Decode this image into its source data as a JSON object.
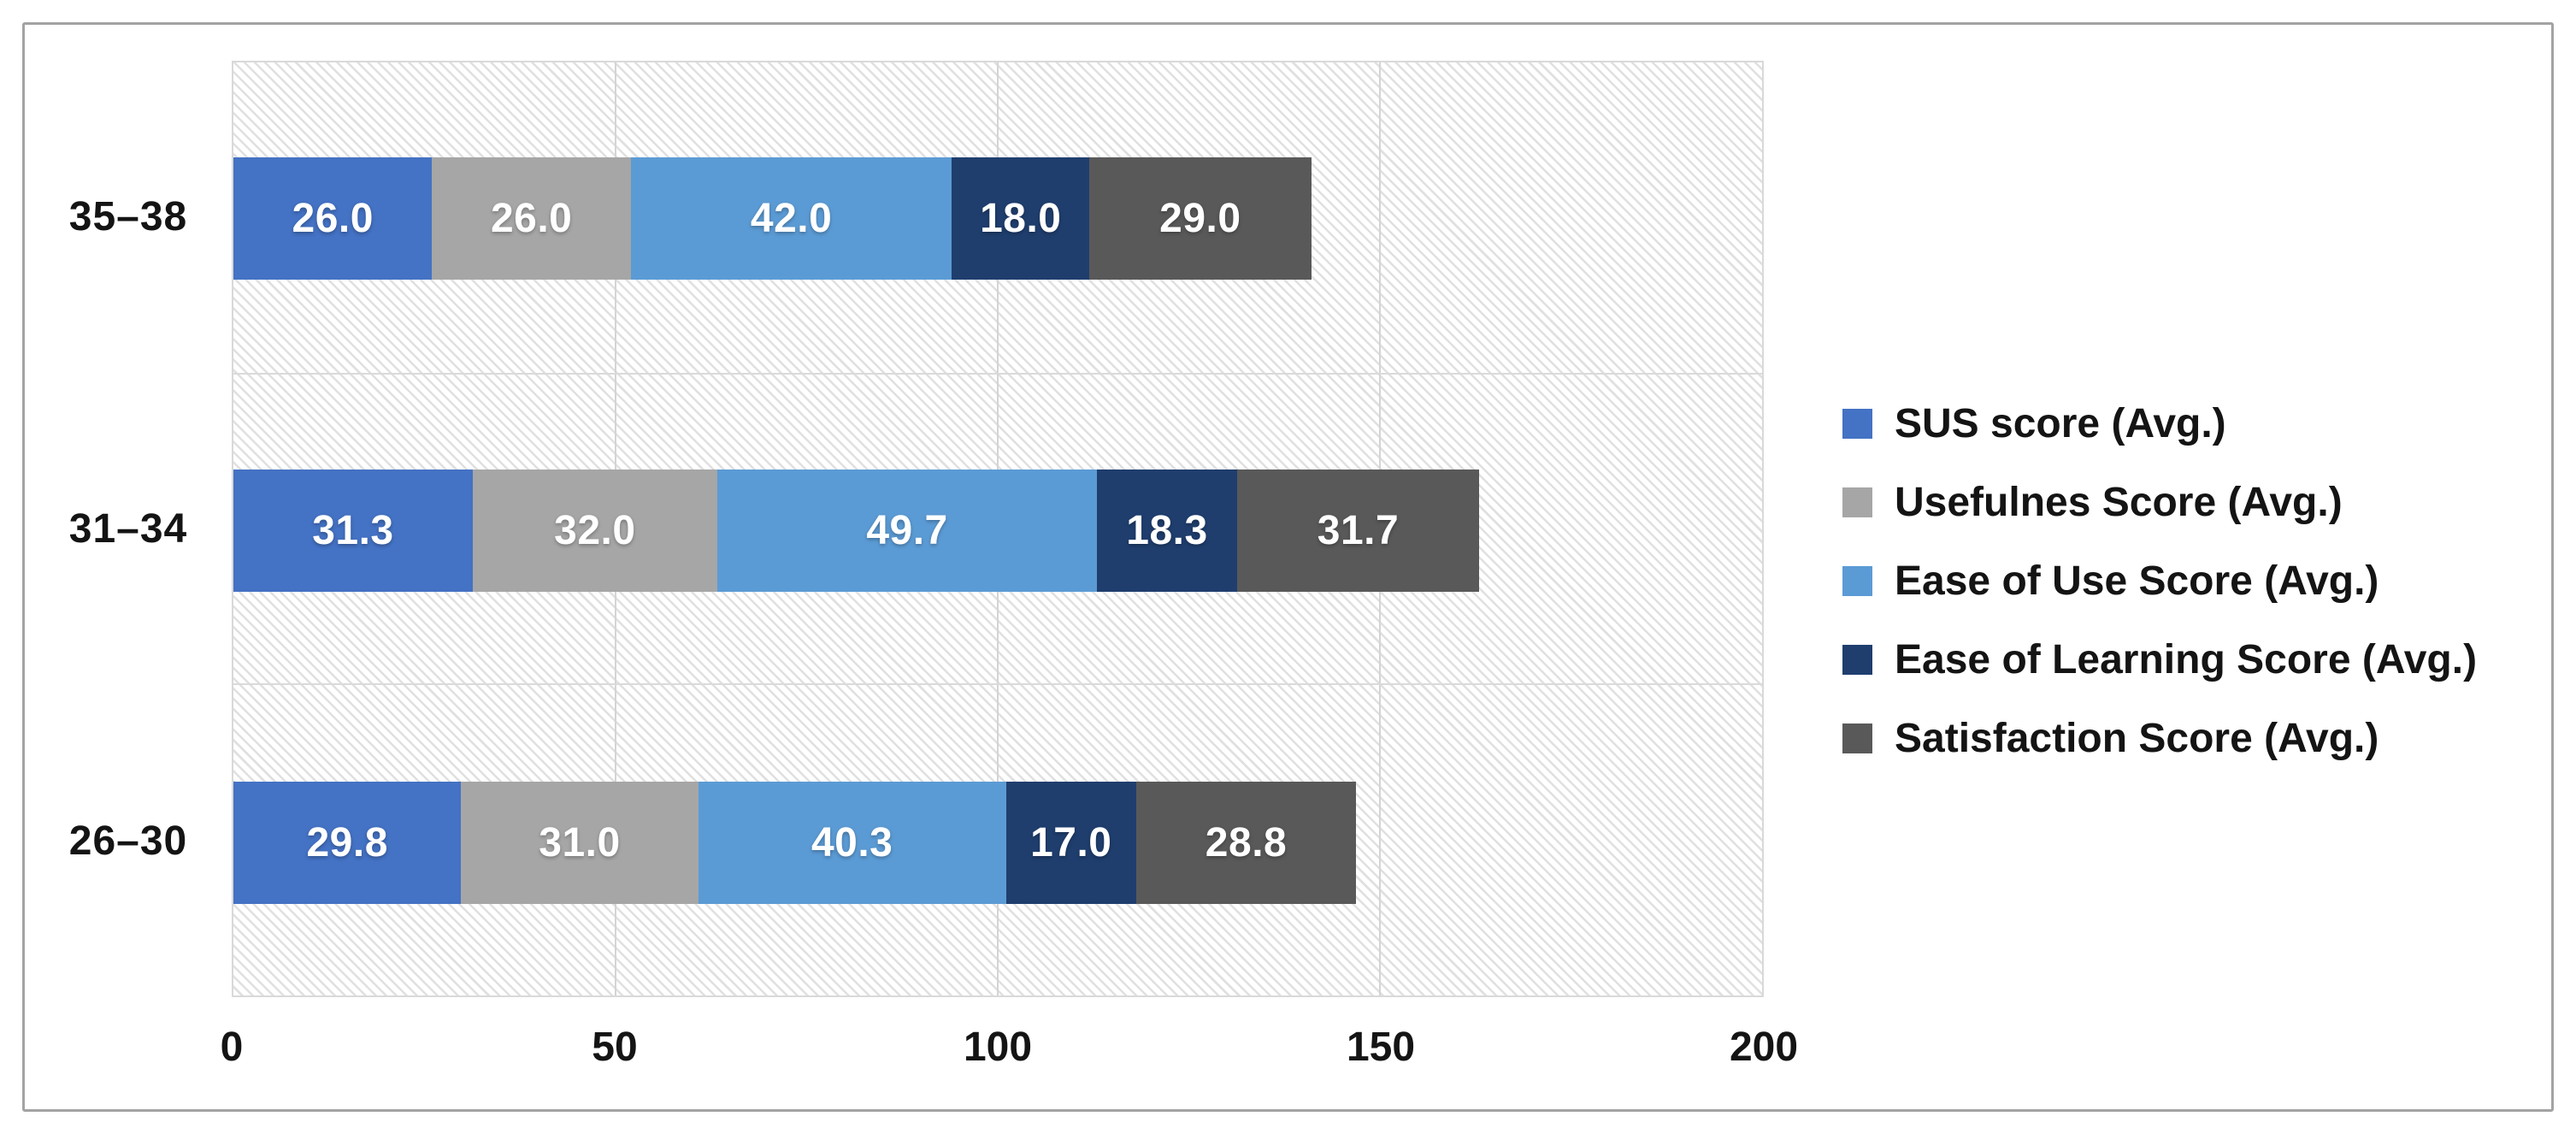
{
  "chart_data": {
    "type": "bar",
    "orientation": "horizontal",
    "stacked": true,
    "title": "",
    "xlabel": "",
    "ylabel": "",
    "categories": [
      "35–38",
      "31–34",
      "26–30"
    ],
    "series": [
      {
        "name": "SUS score (Avg.)",
        "color": "#4472C4",
        "values": [
          26.0,
          31.3,
          29.8
        ]
      },
      {
        "name": "Usefulnes Score (Avg.)",
        "color": "#A6A6A6",
        "values": [
          26.0,
          32.0,
          31.0
        ]
      },
      {
        "name": "Ease of Use Score (Avg.)",
        "color": "#5B9BD5",
        "values": [
          42.0,
          49.7,
          40.3
        ]
      },
      {
        "name": "Ease of Learning Score (Avg.)",
        "color": "#1F3E6E",
        "values": [
          18.0,
          18.3,
          17.0
        ]
      },
      {
        "name": "Satisfaction Score (Avg.)",
        "color": "#595959",
        "values": [
          29.0,
          31.7,
          28.8
        ]
      }
    ],
    "x_axis": {
      "min": 0,
      "max": 200,
      "ticks": [
        "0",
        "50",
        "100",
        "150",
        "200"
      ]
    },
    "value_label_decimals": 1,
    "value_label_color": "#ffffff",
    "legend_position": "right",
    "grid": true,
    "plot_background": "hatched-diagonal"
  }
}
